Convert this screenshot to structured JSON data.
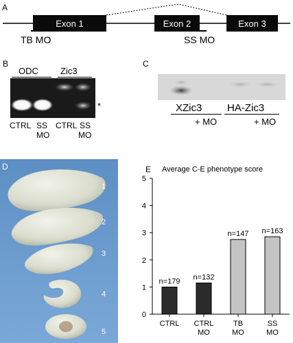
{
  "panel_a": {
    "label": "A",
    "exons": [
      "Exon 1",
      "Exon 2",
      "Exon 3"
    ],
    "mo_labels": [
      "TB MO",
      "SS MO"
    ]
  },
  "panel_b": {
    "label": "B",
    "headers": [
      "ODC",
      "Zic3"
    ],
    "star": "*",
    "lanes": [
      {
        "line1": "CTRL",
        "line2": ""
      },
      {
        "line1": "SS",
        "line2": "MO"
      },
      {
        "line1": "CTRL",
        "line2": ""
      },
      {
        "line1": "SS",
        "line2": "MO"
      }
    ]
  },
  "panel_c": {
    "label": "C",
    "groups": [
      "XZic3",
      "HA-Zic3"
    ],
    "plus_mo": [
      "+ MO",
      "+ MO"
    ]
  },
  "panel_d": {
    "label": "D",
    "numbers": [
      "1",
      "2",
      "3",
      "4",
      "5"
    ]
  },
  "panel_e": {
    "label": "E",
    "title": "Average C-E phenotype score"
  },
  "chart_data": {
    "type": "bar",
    "title": "Average C-E phenotype score",
    "categories": [
      "CTRL",
      "CTRL MO",
      "TB MO",
      "SS MO"
    ],
    "category_lines": [
      [
        "CTRL"
      ],
      [
        "CTRL",
        "MO"
      ],
      [
        "TB",
        "MO"
      ],
      [
        "SS",
        "MO"
      ]
    ],
    "values": [
      1.0,
      1.15,
      2.75,
      2.85
    ],
    "n_labels": [
      "n=179",
      "n=132",
      "n=147",
      "n=163"
    ],
    "bar_colors": [
      "#2b2b2b",
      "#2b2b2b",
      "#c4c4c4",
      "#c4c4c4"
    ],
    "yticks": [
      0,
      1,
      2,
      3,
      4,
      5
    ],
    "ylim": [
      0,
      5
    ],
    "xlabel": "",
    "ylabel": ""
  }
}
